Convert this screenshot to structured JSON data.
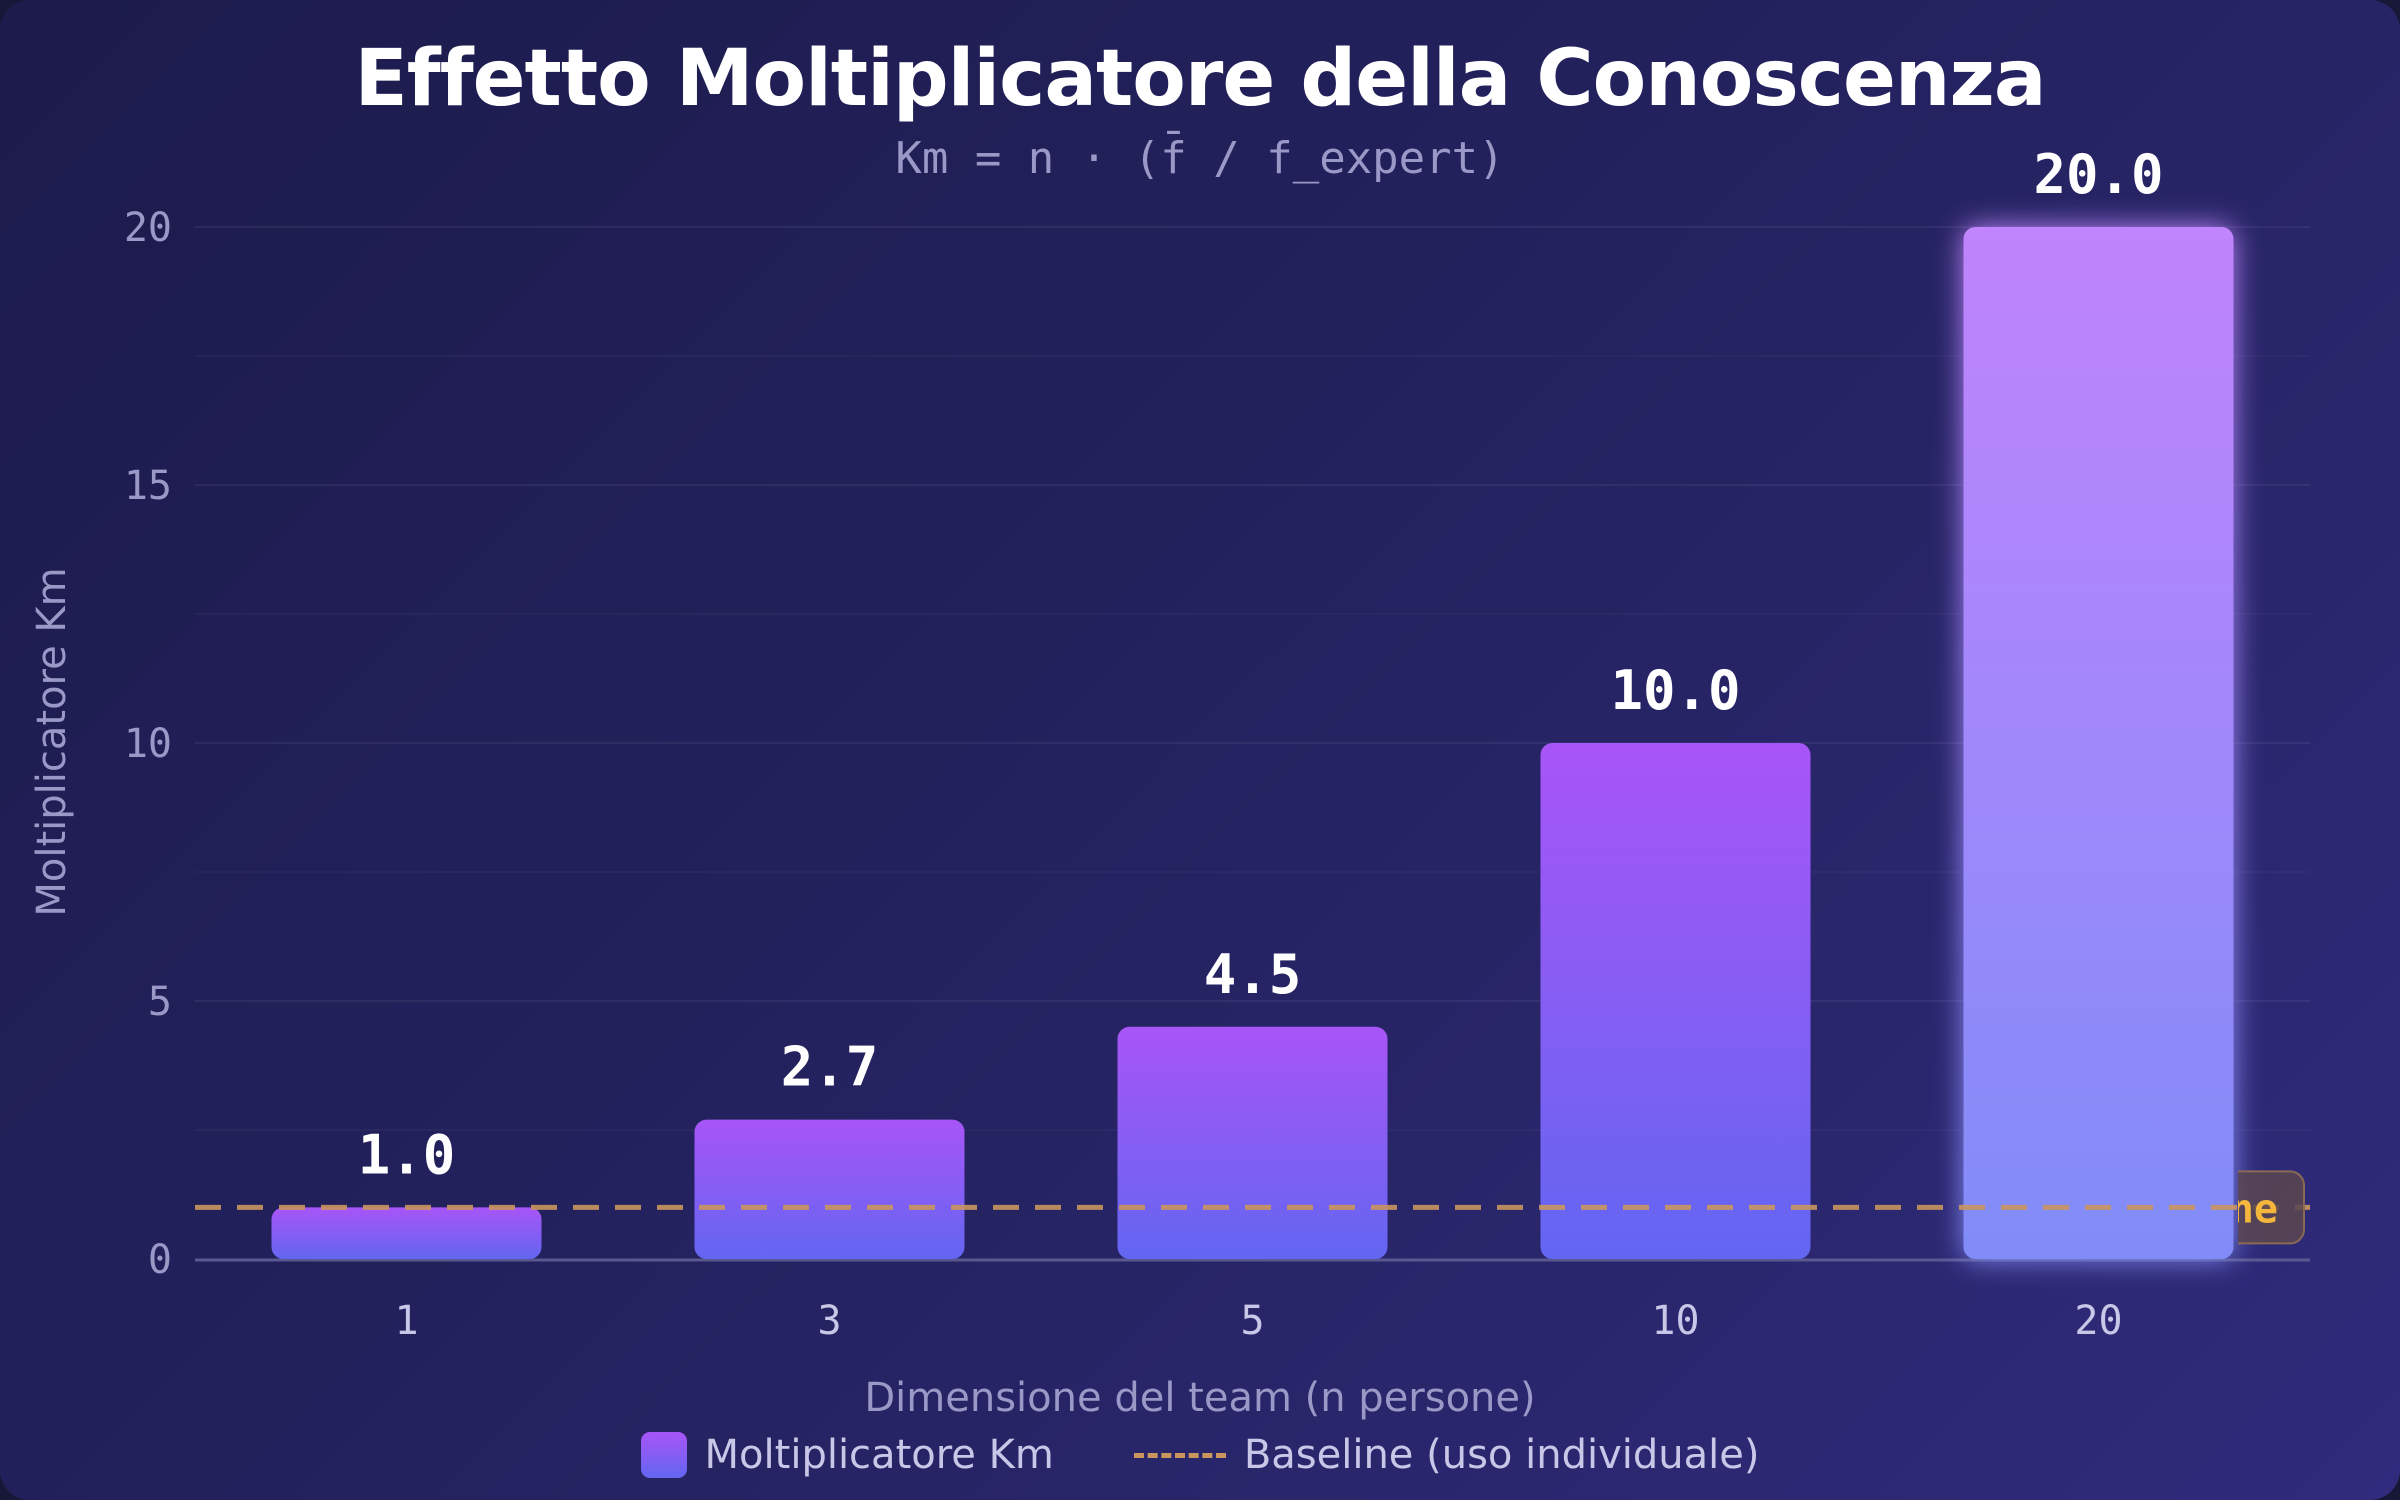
{
  "chart_data": {
    "type": "bar",
    "title": "Effetto Moltiplicatore della Conoscenza",
    "subtitle": "Km = n · (f̄ / f_expert)",
    "xlabel": "Dimensione del team (n persone)",
    "ylabel": "Moltiplicatore Km",
    "categories": [
      "1",
      "3",
      "5",
      "10",
      "20"
    ],
    "series": [
      {
        "name": "Moltiplicatore Km",
        "values": [
          1.0,
          2.7,
          4.5,
          10.0,
          20.0
        ]
      }
    ],
    "data_labels": [
      "1.0",
      "2.7",
      "4.5",
      "10.0",
      "20.0"
    ],
    "ylim": [
      0,
      20
    ],
    "yticks": [
      0,
      5,
      10,
      15,
      20
    ],
    "grid": true,
    "reference_line": {
      "name": "Baseline (uso individuale)",
      "value": 1.0,
      "style": "dashed",
      "end_label": "Baseline",
      "end_label_visible": "ne"
    },
    "legend_position": "bottom-center",
    "colors": {
      "bar_top": "#a855f7",
      "bar_bottom": "#6366f1",
      "highlight_bar_top": "#c084fc",
      "highlight_bar_bottom": "#818cf8",
      "baseline": "#c9965e",
      "baseline_label": "#f5b73b"
    }
  },
  "legend": {
    "bars_label": "Moltiplicatore Km",
    "baseline_label": "Baseline (uso individuale)"
  }
}
